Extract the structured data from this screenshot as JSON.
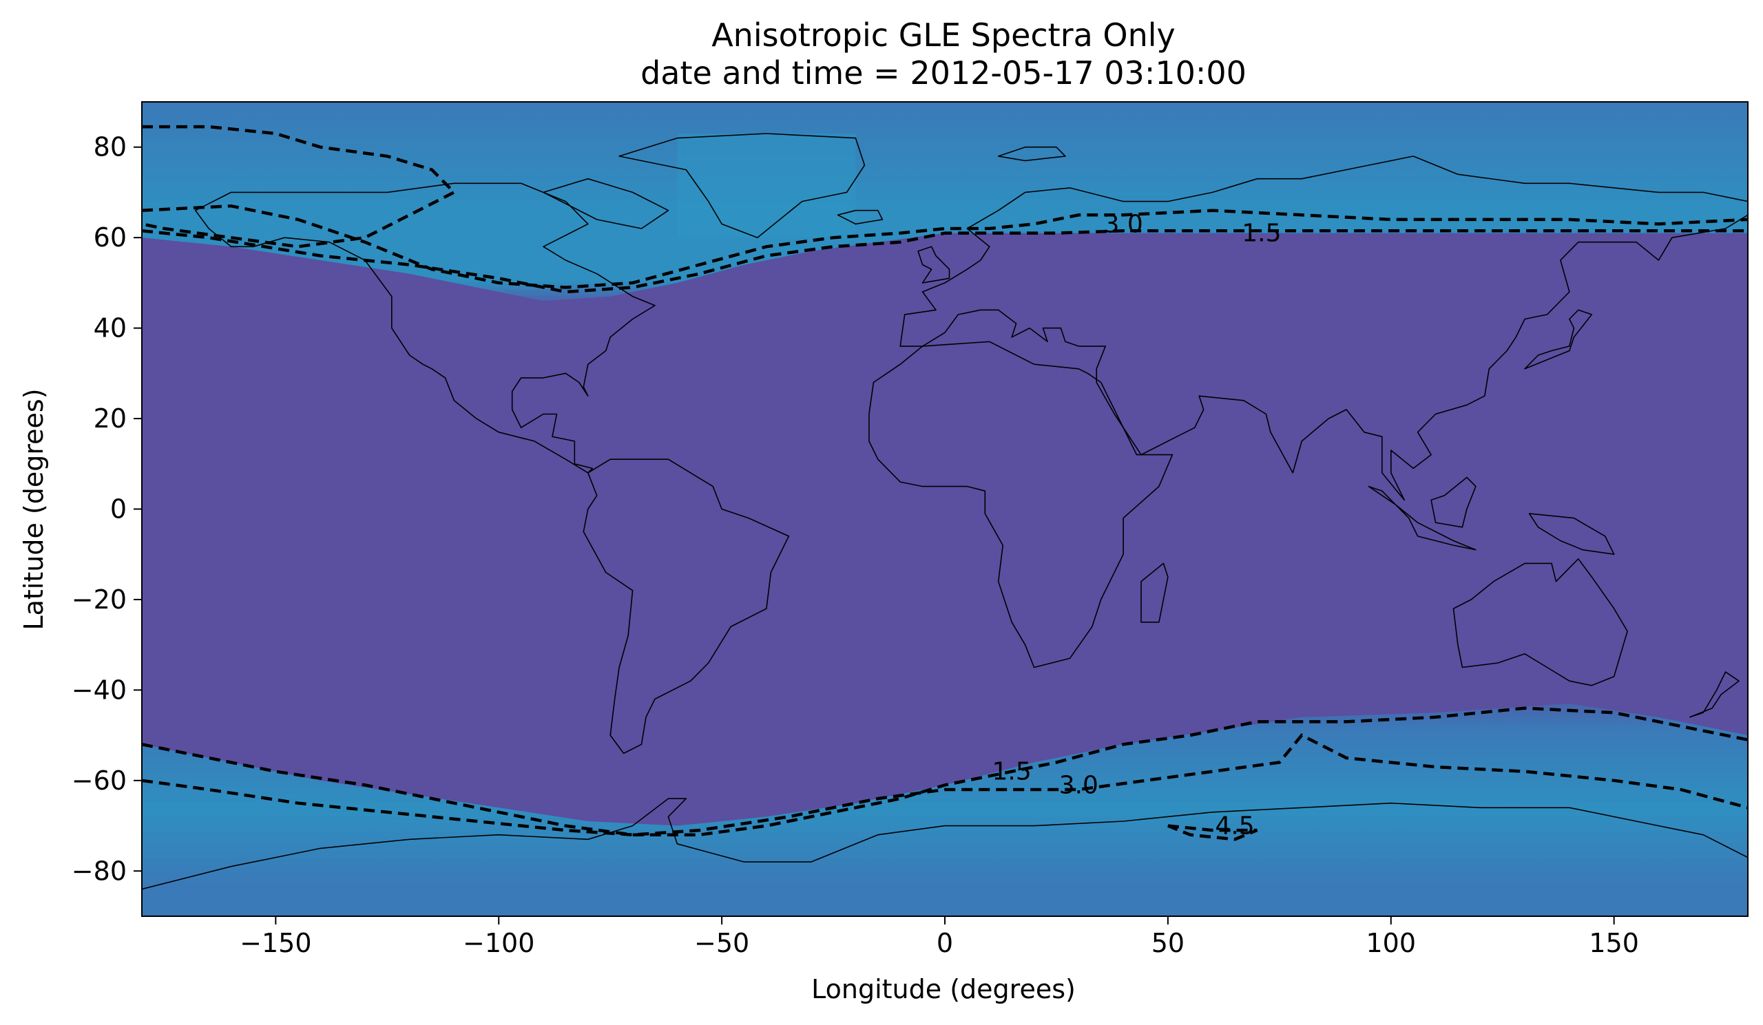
{
  "chart_data": {
    "type": "heatmap",
    "title": "Anisotropic GLE Spectra Only",
    "subtitle": "date and time = 2012-05-17 03:10:00",
    "xlabel": "Longitude (degrees)",
    "ylabel": "Latitude (degrees)",
    "xlim": [
      -180,
      180
    ],
    "ylim": [
      -90,
      90
    ],
    "x_ticks": [
      -150,
      -100,
      -50,
      0,
      50,
      100,
      150
    ],
    "y_ticks": [
      -80,
      -60,
      -40,
      -20,
      0,
      20,
      40,
      60,
      80
    ],
    "x_tick_labels": [
      "−150",
      "−100",
      "−50",
      "0",
      "50",
      "100",
      "150"
    ],
    "y_tick_labels": [
      "−80",
      "−60",
      "−40",
      "−20",
      "0",
      "20",
      "40",
      "60",
      "80"
    ],
    "grid": false,
    "colors": {
      "background_low": "#5b4fa0",
      "polar_high": "#3a7ab8",
      "polar_peak": "#2f8fc0",
      "contour": "#000000",
      "coastline": "#000000"
    },
    "contours": [
      {
        "level": "1.5",
        "north": [
          [
            -180,
            61.5
          ],
          [
            -165,
            60
          ],
          [
            -140,
            56
          ],
          [
            -120,
            54
          ],
          [
            -100,
            51
          ],
          [
            -85,
            48
          ],
          [
            -70,
            49
          ],
          [
            -55,
            52
          ],
          [
            -40,
            56
          ],
          [
            -25,
            58
          ],
          [
            -10,
            59
          ],
          [
            0,
            61
          ],
          [
            10,
            61
          ],
          [
            25,
            61
          ],
          [
            40,
            61.5
          ],
          [
            60,
            61.5
          ],
          [
            80,
            61.5
          ],
          [
            100,
            61.5
          ],
          [
            120,
            61.5
          ],
          [
            140,
            61.5
          ],
          [
            160,
            61.5
          ],
          [
            180,
            61.5
          ]
        ],
        "south": [
          [
            -180,
            -52
          ],
          [
            -165,
            -55
          ],
          [
            -150,
            -58
          ],
          [
            -130,
            -61
          ],
          [
            -115,
            -64
          ],
          [
            -100,
            -67
          ],
          [
            -85,
            -70
          ],
          [
            -70,
            -72
          ],
          [
            -55,
            -72
          ],
          [
            -40,
            -70
          ],
          [
            -25,
            -67
          ],
          [
            -10,
            -64
          ],
          [
            0,
            -61
          ],
          [
            10,
            -59
          ],
          [
            25,
            -56
          ],
          [
            40,
            -52
          ],
          [
            55,
            -50
          ],
          [
            70,
            -47
          ],
          [
            90,
            -47
          ],
          [
            110,
            -46
          ],
          [
            130,
            -44
          ],
          [
            150,
            -45
          ],
          [
            165,
            -48
          ],
          [
            180,
            -51
          ]
        ],
        "labels": [
          {
            "text": "1.5",
            "lon": 71,
            "lat": 61
          },
          {
            "text": "1.5",
            "lon": 15,
            "lat": -58
          }
        ]
      },
      {
        "level": "3.0",
        "north": [
          [
            -180,
            66
          ],
          [
            -160,
            67
          ],
          [
            -145,
            64
          ],
          [
            -130,
            59
          ],
          [
            -115,
            53
          ],
          [
            -100,
            50
          ],
          [
            -85,
            49
          ],
          [
            -70,
            50
          ],
          [
            -55,
            54
          ],
          [
            -40,
            58
          ],
          [
            -25,
            60
          ],
          [
            -10,
            61
          ],
          [
            0,
            62
          ],
          [
            10,
            62
          ],
          [
            20,
            63
          ],
          [
            30,
            65
          ],
          [
            40,
            65
          ],
          [
            60,
            66
          ],
          [
            80,
            65
          ],
          [
            100,
            64
          ],
          [
            120,
            64
          ],
          [
            140,
            64
          ],
          [
            160,
            63
          ],
          [
            180,
            64
          ]
        ],
        "south": [
          [
            -180,
            -60
          ],
          [
            -165,
            -62
          ],
          [
            -145,
            -65
          ],
          [
            -125,
            -67
          ],
          [
            -105,
            -69
          ],
          [
            -85,
            -71
          ],
          [
            -70,
            -72
          ],
          [
            -55,
            -71
          ],
          [
            -35,
            -68
          ],
          [
            -15,
            -64
          ],
          [
            0,
            -62
          ],
          [
            15,
            -62
          ],
          [
            30,
            -62
          ],
          [
            45,
            -60
          ],
          [
            60,
            -58
          ],
          [
            75,
            -56
          ],
          [
            80,
            -50
          ],
          [
            90,
            -55
          ],
          [
            110,
            -57
          ],
          [
            130,
            -58
          ],
          [
            150,
            -60
          ],
          [
            165,
            -62
          ],
          [
            180,
            -66
          ]
        ],
        "labels": [
          {
            "text": "3.0",
            "lon": 40,
            "lat": 63
          },
          {
            "text": "3.0",
            "lon": 30,
            "lat": -61
          }
        ]
      },
      {
        "level": "4.5",
        "north": [
          [
            -180,
            84.5
          ],
          [
            -165,
            84.5
          ],
          [
            -150,
            83
          ],
          [
            -140,
            80
          ],
          [
            -125,
            78
          ],
          [
            -115,
            75
          ],
          [
            -110,
            70
          ],
          [
            -120,
            65
          ],
          [
            -130,
            60
          ],
          [
            -145,
            58
          ],
          [
            -160,
            60
          ],
          [
            -175,
            62
          ],
          [
            -180,
            63
          ]
        ],
        "south": [
          [
            50,
            -70
          ],
          [
            60,
            -71
          ],
          [
            70,
            -71
          ],
          [
            65,
            -73
          ],
          [
            55,
            -72
          ],
          [
            50,
            -70
          ]
        ],
        "labels": [
          {
            "text": "4.5",
            "lon": 65,
            "lat": -70
          }
        ]
      }
    ],
    "polar_bands": {
      "north_boundary_lat": 60,
      "south_boundary_lat": -55
    }
  }
}
